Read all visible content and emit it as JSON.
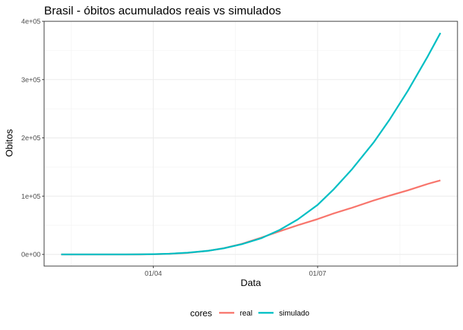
{
  "chart_data": {
    "type": "line",
    "title": "Brasil - óbitos acumulados reais vs simulados",
    "xlabel": "Data",
    "ylabel": "Obitos",
    "x_start": "2020-02-10",
    "x_end": "2020-09-07",
    "x_ticks": [
      {
        "date": "2020-04-01",
        "label": "01/04"
      },
      {
        "date": "2020-07-01",
        "label": "01/07"
      }
    ],
    "ylim": [
      -20000,
      400000
    ],
    "y_ticks": [
      {
        "value": 0,
        "label": "0e+00"
      },
      {
        "value": 100000,
        "label": "1e+05"
      },
      {
        "value": 200000,
        "label": "2e+05"
      },
      {
        "value": 300000,
        "label": "3e+05"
      },
      {
        "value": 400000,
        "label": "4e+05"
      }
    ],
    "grid": true,
    "legend": {
      "title": "cores",
      "position": "bottom"
    },
    "series": [
      {
        "name": "real",
        "color": "#F8766D",
        "points": [
          [
            "2020-02-10",
            0
          ],
          [
            "2020-03-01",
            0
          ],
          [
            "2020-03-17",
            1
          ],
          [
            "2020-03-25",
            60
          ],
          [
            "2020-04-01",
            240
          ],
          [
            "2020-04-10",
            1100
          ],
          [
            "2020-04-20",
            2600
          ],
          [
            "2020-05-01",
            6000
          ],
          [
            "2020-05-10",
            10600
          ],
          [
            "2020-05-20",
            18000
          ],
          [
            "2020-05-31",
            29000
          ],
          [
            "2020-06-10",
            39700
          ],
          [
            "2020-06-20",
            50000
          ],
          [
            "2020-07-01",
            60600
          ],
          [
            "2020-07-10",
            70400
          ],
          [
            "2020-07-20",
            80000
          ],
          [
            "2020-08-01",
            92500
          ],
          [
            "2020-08-10",
            101000
          ],
          [
            "2020-08-20",
            110000
          ],
          [
            "2020-08-31",
            121000
          ],
          [
            "2020-09-07",
            127000
          ]
        ]
      },
      {
        "name": "simulado",
        "color": "#00BFC4",
        "points": [
          [
            "2020-02-10",
            0
          ],
          [
            "2020-03-01",
            0
          ],
          [
            "2020-03-17",
            30
          ],
          [
            "2020-03-25",
            150
          ],
          [
            "2020-04-01",
            400
          ],
          [
            "2020-04-10",
            1200
          ],
          [
            "2020-04-20",
            2900
          ],
          [
            "2020-05-01",
            6100
          ],
          [
            "2020-05-10",
            10500
          ],
          [
            "2020-05-20",
            17500
          ],
          [
            "2020-05-31",
            28000
          ],
          [
            "2020-06-10",
            42000
          ],
          [
            "2020-06-20",
            60000
          ],
          [
            "2020-07-01",
            85000
          ],
          [
            "2020-07-10",
            112000
          ],
          [
            "2020-07-20",
            146000
          ],
          [
            "2020-08-01",
            192000
          ],
          [
            "2020-08-10",
            232000
          ],
          [
            "2020-08-20",
            281000
          ],
          [
            "2020-08-31",
            340000
          ],
          [
            "2020-09-07",
            380000
          ]
        ]
      }
    ]
  }
}
